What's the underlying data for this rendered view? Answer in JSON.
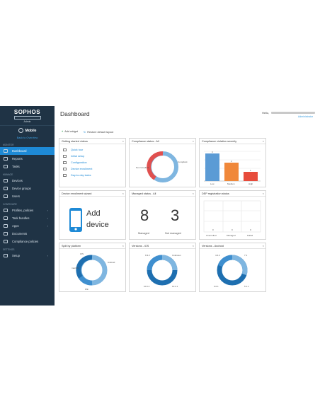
{
  "sidebar": {
    "logo": "SOPHOS",
    "logo_sub": "Admin",
    "product": "Mobile",
    "back_link": "Back to Overview",
    "sections": {
      "monitor": "Monitor",
      "manage": "Manage",
      "configure": "Configure",
      "settings": "Settings"
    },
    "items": {
      "dashboard": "Dashboard",
      "reports": "Reports",
      "tasks": "Tasks",
      "devices": "Devices",
      "device_groups": "Device groups",
      "users": "Users",
      "profiles": "Profiles, policies",
      "task_bundles": "Task bundles",
      "apps": "Apps",
      "documents": "Documents",
      "compliance": "Compliance policies",
      "setup": "Setup"
    }
  },
  "header": {
    "title": "Dashboard",
    "hello": "Hello,",
    "role": "Administrator"
  },
  "toolbar": {
    "add_widget": "Add widget",
    "restore": "Restore default layout"
  },
  "widgets": {
    "videos": {
      "title": "Getting started videos",
      "items": [
        "Quick tour",
        "Initial setup",
        "Configuration",
        "Device enrollment",
        "Day-to-day tasks"
      ]
    },
    "compliance_status": {
      "title": "Compliance status - All",
      "labels": [
        "Not compliant",
        "Compliant"
      ]
    },
    "violation_severity": {
      "title": "Compliance violation severity",
      "categories": [
        "Low",
        "Medium",
        "High"
      ],
      "value_labels": [
        "3",
        "2",
        "1"
      ],
      "colors": [
        "#5b9bd5",
        "#f0883a",
        "#e74c3c"
      ]
    },
    "enrollment": {
      "title": "Device enrollment wizard",
      "label_line1": "Add",
      "label_line2": "device"
    },
    "managed": {
      "title": "Managed status - All",
      "managed_count": "8",
      "not_managed_count": "3",
      "managed_label": "Managed",
      "not_managed_label": "Not managed"
    },
    "dep": {
      "title": "DEP registration status",
      "labels": [
        "Unenrolled",
        "Managed",
        "Failed"
      ],
      "values": [
        "0",
        "0",
        "0"
      ]
    },
    "split": {
      "title": "Split by platform",
      "labels": [
        "iOS",
        "Android",
        "macOS",
        "Win"
      ]
    },
    "ios_versions": {
      "title": "Versions - iOS",
      "labels": [
        "9.3.2",
        "Unknown",
        "10.0.2",
        "10.2.1"
      ]
    },
    "android_versions": {
      "title": "Versions - Android",
      "labels": [
        "4.4.2",
        "7.1",
        "6.0.1",
        "5.1.1"
      ]
    }
  }
}
